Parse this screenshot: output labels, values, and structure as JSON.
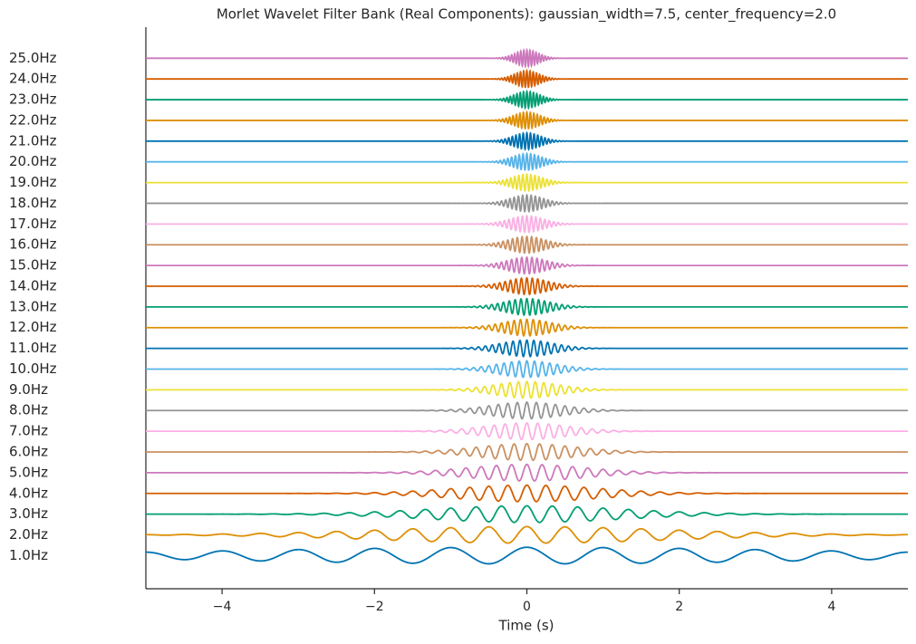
{
  "chart_data": {
    "type": "wavelet-bank",
    "title": "Morlet Wavelet Filter Bank (Real Components): gaussian_width=7.5, center_frequency=2.0",
    "xlabel": "Time (s)",
    "gaussian_width": 7.5,
    "center_frequency": 2.0,
    "xlim": [
      -5,
      5
    ],
    "xticks": [
      {
        "value": -4,
        "label": "−4"
      },
      {
        "value": -2,
        "label": "−2"
      },
      0,
      2,
      4
    ],
    "ylim": [
      -0.6,
      26.5
    ],
    "yticks": [
      {
        "value": 1,
        "label": "1.0Hz"
      },
      {
        "value": 2,
        "label": "2.0Hz"
      },
      {
        "value": 3,
        "label": "3.0Hz"
      },
      {
        "value": 4,
        "label": "4.0Hz"
      },
      {
        "value": 5,
        "label": "5.0Hz"
      },
      {
        "value": 6,
        "label": "6.0Hz"
      },
      {
        "value": 7,
        "label": "7.0Hz"
      },
      {
        "value": 8,
        "label": "8.0Hz"
      },
      {
        "value": 9,
        "label": "9.0Hz"
      },
      {
        "value": 10,
        "label": "10.0Hz"
      },
      {
        "value": 11,
        "label": "11.0Hz"
      },
      {
        "value": 12,
        "label": "12.0Hz"
      },
      {
        "value": 13,
        "label": "13.0Hz"
      },
      {
        "value": 14,
        "label": "14.0Hz"
      },
      {
        "value": 15,
        "label": "15.0Hz"
      },
      {
        "value": 16,
        "label": "16.0Hz"
      },
      {
        "value": 17,
        "label": "17.0Hz"
      },
      {
        "value": 18,
        "label": "18.0Hz"
      },
      {
        "value": 19,
        "label": "19.0Hz"
      },
      {
        "value": 20,
        "label": "20.0Hz"
      },
      {
        "value": 21,
        "label": "21.0Hz"
      },
      {
        "value": 22,
        "label": "22.0Hz"
      },
      {
        "value": 23,
        "label": "23.0Hz"
      },
      {
        "value": 24,
        "label": "24.0Hz"
      },
      {
        "value": 25,
        "label": "25.0Hz"
      }
    ],
    "colors": [
      "#0173b2",
      "#de8f05",
      "#029e73",
      "#d55e00",
      "#cc78bc",
      "#ca9161",
      "#fbafe4",
      "#949494",
      "#ece133",
      "#56b4e9"
    ]
  }
}
